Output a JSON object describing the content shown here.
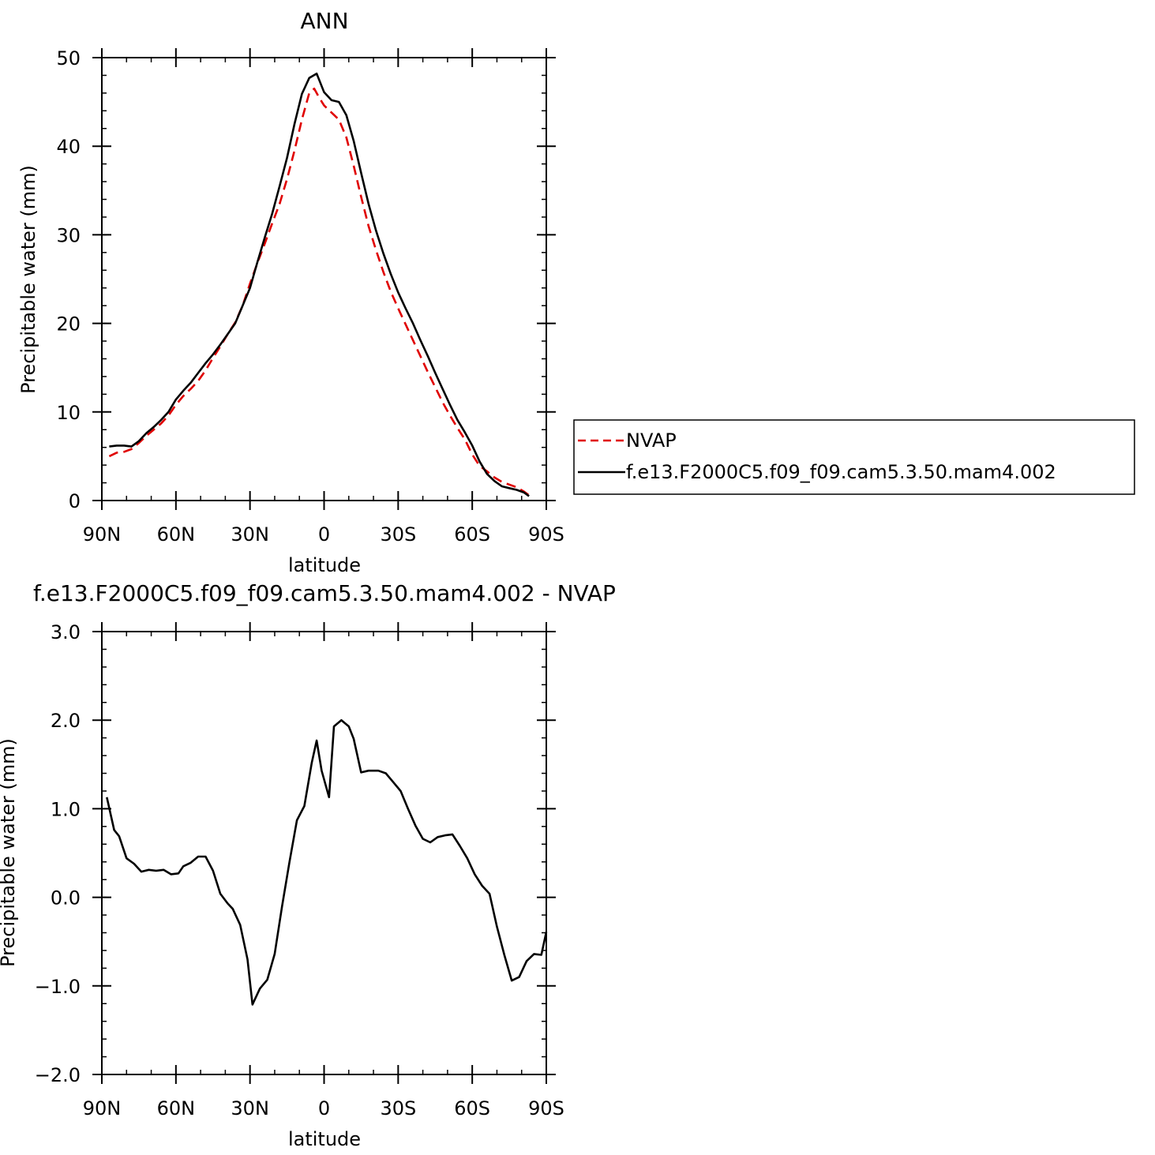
{
  "chart_data": [
    {
      "type": "line",
      "title": "ANN",
      "xlabel": "latitude",
      "ylabel": "Precipitable water (mm)",
      "xlim": [
        -90,
        90
      ],
      "ylim": [
        0,
        50
      ],
      "x_ticks": [
        -90,
        -60,
        -30,
        0,
        30,
        60,
        90
      ],
      "x_tick_labels": [
        "90N",
        "60N",
        "30N",
        "0",
        "30S",
        "60S",
        "90S"
      ],
      "y_ticks": [
        0,
        10,
        20,
        30,
        40,
        50
      ],
      "y_tick_labels": [
        "0",
        "10",
        "20",
        "30",
        "40",
        "50"
      ],
      "legend": {
        "placement": "right",
        "entries": [
          "NVAP",
          "f.e13.F2000C5.f09_f09.cam5.3.50.mam4.002"
        ]
      },
      "series": [
        {
          "name": "NVAP",
          "color": "#e00000",
          "dash": true,
          "points": [
            [
              -87,
              5.0
            ],
            [
              -84,
              5.4
            ],
            [
              -81,
              5.5
            ],
            [
              -78,
              5.8
            ],
            [
              -75,
              6.5
            ],
            [
              -72,
              7.3
            ],
            [
              -69,
              8.0
            ],
            [
              -66,
              8.7
            ],
            [
              -63,
              9.6
            ],
            [
              -60,
              10.8
            ],
            [
              -57,
              11.8
            ],
            [
              -54,
              12.6
            ],
            [
              -51,
              13.5
            ],
            [
              -48,
              14.7
            ],
            [
              -45,
              16.1
            ],
            [
              -42,
              17.4
            ],
            [
              -39,
              18.8
            ],
            [
              -36,
              20.1
            ],
            [
              -33,
              22.0
            ],
            [
              -30,
              24.5
            ],
            [
              -27,
              26.8
            ],
            [
              -24,
              29.0
            ],
            [
              -21,
              31.3
            ],
            [
              -18,
              33.5
            ],
            [
              -15,
              36.3
            ],
            [
              -12,
              39.5
            ],
            [
              -9,
              43.0
            ],
            [
              -6,
              46.0
            ],
            [
              -4,
              46.5
            ],
            [
              -2,
              45.5
            ],
            [
              0,
              44.6
            ],
            [
              3,
              43.8
            ],
            [
              6,
              43.0
            ],
            [
              9,
              41.0
            ],
            [
              12,
              37.8
            ],
            [
              15,
              34.3
            ],
            [
              18,
              31.0
            ],
            [
              21,
              28.3
            ],
            [
              24,
              25.8
            ],
            [
              27,
              23.6
            ],
            [
              30,
              21.7
            ],
            [
              33,
              19.9
            ],
            [
              36,
              18.1
            ],
            [
              39,
              16.3
            ],
            [
              42,
              14.5
            ],
            [
              45,
              12.8
            ],
            [
              48,
              11.1
            ],
            [
              51,
              9.6
            ],
            [
              54,
              8.2
            ],
            [
              57,
              6.9
            ],
            [
              60,
              5.2
            ],
            [
              63,
              3.9
            ],
            [
              66,
              3.3
            ],
            [
              69,
              2.6
            ],
            [
              72,
              2.1
            ],
            [
              75,
              1.8
            ],
            [
              78,
              1.5
            ],
            [
              81,
              1.0
            ],
            [
              83,
              0.6
            ]
          ]
        },
        {
          "name": "f.e13.F2000C5.f09_f09.cam5.3.50.mam4.002",
          "color": "#000000",
          "dash": false,
          "points": [
            [
              -87,
              6.1
            ],
            [
              -84,
              6.2
            ],
            [
              -81,
              6.2
            ],
            [
              -78,
              6.1
            ],
            [
              -75,
              6.7
            ],
            [
              -72,
              7.6
            ],
            [
              -69,
              8.3
            ],
            [
              -66,
              9.1
            ],
            [
              -63,
              10.0
            ],
            [
              -60,
              11.4
            ],
            [
              -57,
              12.4
            ],
            [
              -54,
              13.3
            ],
            [
              -51,
              14.4
            ],
            [
              -48,
              15.5
            ],
            [
              -45,
              16.5
            ],
            [
              -42,
              17.6
            ],
            [
              -39,
              18.8
            ],
            [
              -36,
              20.0
            ],
            [
              -33,
              22.0
            ],
            [
              -30,
              24.0
            ],
            [
              -27,
              26.9
            ],
            [
              -24,
              29.7
            ],
            [
              -21,
              32.4
            ],
            [
              -18,
              35.5
            ],
            [
              -15,
              38.7
            ],
            [
              -12,
              42.5
            ],
            [
              -9,
              45.9
            ],
            [
              -6,
              47.7
            ],
            [
              -3,
              48.2
            ],
            [
              0,
              46.1
            ],
            [
              3,
              45.2
            ],
            [
              6,
              45.0
            ],
            [
              9,
              43.5
            ],
            [
              12,
              40.6
            ],
            [
              15,
              37.0
            ],
            [
              18,
              33.5
            ],
            [
              21,
              30.5
            ],
            [
              24,
              27.9
            ],
            [
              27,
              25.6
            ],
            [
              30,
              23.5
            ],
            [
              33,
              21.7
            ],
            [
              36,
              20.0
            ],
            [
              39,
              18.1
            ],
            [
              42,
              16.3
            ],
            [
              45,
              14.4
            ],
            [
              48,
              12.6
            ],
            [
              51,
              10.8
            ],
            [
              54,
              9.1
            ],
            [
              57,
              7.7
            ],
            [
              60,
              6.2
            ],
            [
              63,
              4.4
            ],
            [
              66,
              3.0
            ],
            [
              69,
              2.2
            ],
            [
              72,
              1.6
            ],
            [
              75,
              1.4
            ],
            [
              78,
              1.2
            ],
            [
              81,
              0.9
            ],
            [
              83,
              0.5
            ]
          ]
        }
      ]
    },
    {
      "type": "line",
      "title": "f.e13.F2000C5.f09_f09.cam5.3.50.mam4.002 - NVAP",
      "xlabel": "latitude",
      "ylabel": "Precipitable water (mm)",
      "xlim": [
        -90,
        90
      ],
      "ylim": [
        -2.0,
        3.0
      ],
      "x_ticks": [
        -90,
        -60,
        -30,
        0,
        30,
        60,
        90
      ],
      "x_tick_labels": [
        "90N",
        "60N",
        "30N",
        "0",
        "30S",
        "60S",
        "90S"
      ],
      "y_ticks": [
        -2.0,
        -1.0,
        0.0,
        1.0,
        2.0,
        3.0
      ],
      "y_tick_labels": [
        "−2.0",
        "−1.0",
        "0.0",
        "1.0",
        "2.0",
        "3.0"
      ],
      "series": [
        {
          "color": "#000000",
          "dash": false,
          "points": [
            [
              -88,
              1.13
            ],
            [
              -85,
              0.76
            ],
            [
              -83,
              0.69
            ],
            [
              -80,
              0.44
            ],
            [
              -77,
              0.38
            ],
            [
              -74,
              0.29
            ],
            [
              -71,
              0.31
            ],
            [
              -68,
              0.3
            ],
            [
              -65,
              0.31
            ],
            [
              -62,
              0.26
            ],
            [
              -59,
              0.27
            ],
            [
              -57,
              0.35
            ],
            [
              -54,
              0.39
            ],
            [
              -51,
              0.46
            ],
            [
              -48,
              0.46
            ],
            [
              -45,
              0.3
            ],
            [
              -42,
              0.04
            ],
            [
              -39,
              -0.07
            ],
            [
              -37,
              -0.13
            ],
            [
              -34,
              -0.31
            ],
            [
              -31,
              -0.7
            ],
            [
              -29,
              -1.21
            ],
            [
              -26,
              -1.03
            ],
            [
              -23,
              -0.93
            ],
            [
              -20,
              -0.64
            ],
            [
              -17,
              -0.1
            ],
            [
              -14,
              0.4
            ],
            [
              -11,
              0.87
            ],
            [
              -8,
              1.03
            ],
            [
              -5,
              1.52
            ],
            [
              -3,
              1.77
            ],
            [
              -1,
              1.43
            ],
            [
              2,
              1.13
            ],
            [
              4,
              1.93
            ],
            [
              7,
              2.0
            ],
            [
              10,
              1.93
            ],
            [
              12,
              1.79
            ],
            [
              15,
              1.41
            ],
            [
              18,
              1.43
            ],
            [
              22,
              1.43
            ],
            [
              25,
              1.4
            ],
            [
              28,
              1.3
            ],
            [
              31,
              1.2
            ],
            [
              34,
              1.0
            ],
            [
              37,
              0.81
            ],
            [
              40,
              0.66
            ],
            [
              43,
              0.62
            ],
            [
              46,
              0.68
            ],
            [
              49,
              0.7
            ],
            [
              52,
              0.71
            ],
            [
              55,
              0.58
            ],
            [
              58,
              0.44
            ],
            [
              61,
              0.26
            ],
            [
              64,
              0.13
            ],
            [
              67,
              0.04
            ],
            [
              70,
              -0.33
            ],
            [
              73,
              -0.65
            ],
            [
              76,
              -0.94
            ],
            [
              79,
              -0.9
            ],
            [
              82,
              -0.72
            ],
            [
              85,
              -0.64
            ],
            [
              88,
              -0.65
            ],
            [
              90,
              -0.39
            ]
          ]
        }
      ]
    }
  ]
}
